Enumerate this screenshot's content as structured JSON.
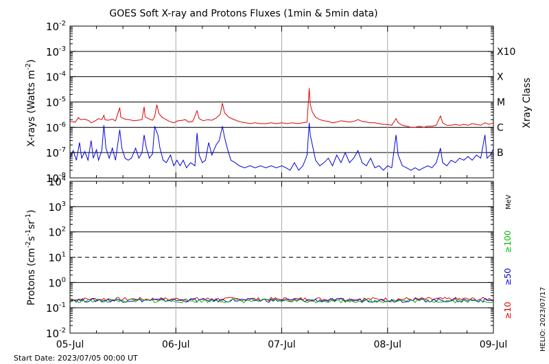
{
  "title": "GOES Soft X-ray and Protons Fluxes   (1min & 5min data)",
  "footer": {
    "start_date": "Start Date: 2023/07/05 00:00 UT",
    "side_stamp": "HELIO: 2023/07/17"
  },
  "chart_data": [
    {
      "type": "line",
      "panel": "xray",
      "ylabel_main": "X-rays (Watts m",
      "ylabel_sup": "-2",
      "ylabel_close": ")",
      "y_scale": "log",
      "ylim_exp": [
        -8,
        -2
      ],
      "ytick_exponents": [
        -8,
        -7,
        -6,
        -5,
        -4,
        -3,
        -2
      ],
      "ytick_base": "10",
      "right_axis_label": "Xray Class",
      "class_labels": [
        {
          "label": "X10",
          "exp": -3
        },
        {
          "label": "X",
          "exp": -4
        },
        {
          "label": "M",
          "exp": -5
        },
        {
          "label": "C",
          "exp": -6
        },
        {
          "label": "B",
          "exp": -7
        }
      ],
      "grid_lines_exp": [
        -7,
        -6,
        -5,
        -4,
        -3
      ],
      "series": [
        {
          "name": "long",
          "color": "#dd0000",
          "points": [
            [
              0,
              1.7e-06
            ],
            [
              0.05,
              1.6e-06
            ],
            [
              0.08,
              2.4e-06
            ],
            [
              0.1,
              2e-06
            ],
            [
              0.14,
              2.1e-06
            ],
            [
              0.18,
              1.8e-06
            ],
            [
              0.2,
              1.5e-06
            ],
            [
              0.23,
              1.7e-06
            ],
            [
              0.27,
              2.2e-06
            ],
            [
              0.3,
              2e-06
            ],
            [
              0.32,
              3e-06
            ],
            [
              0.33,
              2e-06
            ],
            [
              0.36,
              1.9e-06
            ],
            [
              0.4,
              2.1e-06
            ],
            [
              0.43,
              1.8e-06
            ],
            [
              0.47,
              6e-06
            ],
            [
              0.48,
              2.5e-06
            ],
            [
              0.52,
              2.1e-06
            ],
            [
              0.56,
              2e-06
            ],
            [
              0.6,
              1.8e-06
            ],
            [
              0.64,
              1.9e-06
            ],
            [
              0.68,
              2e-06
            ],
            [
              0.7,
              6.5e-06
            ],
            [
              0.71,
              2.6e-06
            ],
            [
              0.74,
              2.2e-06
            ],
            [
              0.78,
              1.9e-06
            ],
            [
              0.8,
              2.6e-06
            ],
            [
              0.82,
              7.8e-06
            ],
            [
              0.84,
              3.5e-06
            ],
            [
              0.87,
              2.5e-06
            ],
            [
              0.9,
              2.1e-06
            ],
            [
              0.94,
              1.7e-06
            ],
            [
              0.98,
              1.5e-06
            ],
            [
              1.02,
              1.8e-06
            ],
            [
              1.06,
              1.9e-06
            ],
            [
              1.09,
              2e-06
            ],
            [
              1.12,
              1.6e-06
            ],
            [
              1.16,
              1.7e-06
            ],
            [
              1.2,
              4.5e-06
            ],
            [
              1.22,
              2.2e-06
            ],
            [
              1.26,
              1.8e-06
            ],
            [
              1.3,
              2e-06
            ],
            [
              1.34,
              1.9e-06
            ],
            [
              1.38,
              2.3e-06
            ],
            [
              1.42,
              3.3e-06
            ],
            [
              1.44,
              9e-06
            ],
            [
              1.46,
              3.8e-06
            ],
            [
              1.5,
              2.5e-06
            ],
            [
              1.54,
              2.1e-06
            ],
            [
              1.58,
              1.8e-06
            ],
            [
              1.62,
              1.6e-06
            ],
            [
              1.66,
              1.5e-06
            ],
            [
              1.7,
              1.4e-06
            ],
            [
              1.75,
              1.5e-06
            ],
            [
              1.8,
              1.4e-06
            ],
            [
              1.85,
              1.4e-06
            ],
            [
              1.9,
              1.5e-06
            ],
            [
              1.95,
              1.4e-06
            ],
            [
              2.0,
              1.5e-06
            ],
            [
              2.05,
              1.4e-06
            ],
            [
              2.1,
              1.5e-06
            ],
            [
              2.15,
              1.4e-06
            ],
            [
              2.2,
              1.5e-06
            ],
            [
              2.24,
              1.6e-06
            ],
            [
              2.26,
              3.5e-05
            ],
            [
              2.27,
              8e-06
            ],
            [
              2.29,
              4e-06
            ],
            [
              2.32,
              2.5e-06
            ],
            [
              2.36,
              2e-06
            ],
            [
              2.4,
              1.8e-06
            ],
            [
              2.44,
              1.7e-06
            ],
            [
              2.48,
              1.5e-06
            ],
            [
              2.52,
              1.6e-06
            ],
            [
              2.56,
              1.8e-06
            ],
            [
              2.6,
              1.7e-06
            ],
            [
              2.64,
              1.6e-06
            ],
            [
              2.68,
              1.7e-06
            ],
            [
              2.72,
              2e-06
            ],
            [
              2.76,
              1.7e-06
            ],
            [
              2.8,
              1.6e-06
            ],
            [
              2.84,
              1.5e-06
            ],
            [
              2.88,
              1.5e-06
            ],
            [
              2.92,
              1.4e-06
            ],
            [
              2.96,
              1.3e-06
            ],
            [
              3.0,
              1.3e-06
            ],
            [
              3.04,
              1.2e-06
            ],
            [
              3.08,
              2.2e-06
            ],
            [
              3.1,
              1.5e-06
            ],
            [
              3.14,
              1.2e-06
            ],
            [
              3.18,
              1.1e-06
            ],
            [
              3.22,
              1e-06
            ],
            [
              3.26,
              1e-06
            ],
            [
              3.3,
              1.1e-06
            ],
            [
              3.34,
              1e-06
            ],
            [
              3.38,
              1.1e-06
            ],
            [
              3.42,
              1.1e-06
            ],
            [
              3.46,
              1.2e-06
            ],
            [
              3.5,
              2.8e-06
            ],
            [
              3.52,
              1.5e-06
            ],
            [
              3.56,
              1.2e-06
            ],
            [
              3.6,
              1.2e-06
            ],
            [
              3.64,
              1.3e-06
            ],
            [
              3.68,
              1.2e-06
            ],
            [
              3.72,
              1.3e-06
            ],
            [
              3.76,
              1.2e-06
            ],
            [
              3.8,
              1.4e-06
            ],
            [
              3.84,
              1.3e-06
            ],
            [
              3.88,
              1.2e-06
            ],
            [
              3.92,
              1.5e-06
            ],
            [
              3.96,
              1.3e-06
            ],
            [
              4.0,
              1.5e-06
            ]
          ]
        },
        {
          "name": "short",
          "color": "#0000dd",
          "points": [
            [
              0,
              6e-08
            ],
            [
              0.03,
              1.2e-07
            ],
            [
              0.06,
              5e-08
            ],
            [
              0.09,
              2.5e-07
            ],
            [
              0.11,
              6e-08
            ],
            [
              0.14,
              1.1e-07
            ],
            [
              0.17,
              5e-08
            ],
            [
              0.2,
              3e-07
            ],
            [
              0.22,
              6e-08
            ],
            [
              0.25,
              1.3e-07
            ],
            [
              0.27,
              5e-08
            ],
            [
              0.3,
              1.2e-07
            ],
            [
              0.32,
              1.2e-06
            ],
            [
              0.34,
              1.5e-07
            ],
            [
              0.37,
              6e-08
            ],
            [
              0.4,
              1.5e-07
            ],
            [
              0.43,
              5e-08
            ],
            [
              0.47,
              8e-07
            ],
            [
              0.49,
              1.5e-07
            ],
            [
              0.52,
              6e-08
            ],
            [
              0.55,
              5e-08
            ],
            [
              0.58,
              6e-08
            ],
            [
              0.62,
              1.5e-07
            ],
            [
              0.65,
              6e-08
            ],
            [
              0.68,
              1e-07
            ],
            [
              0.7,
              5e-07
            ],
            [
              0.72,
              1.6e-07
            ],
            [
              0.75,
              6e-08
            ],
            [
              0.78,
              9e-08
            ],
            [
              0.8,
              1.1e-06
            ],
            [
              0.83,
              5e-07
            ],
            [
              0.85,
              1.5e-07
            ],
            [
              0.88,
              5e-08
            ],
            [
              0.91,
              4e-08
            ],
            [
              0.95,
              8e-08
            ],
            [
              0.98,
              3e-08
            ],
            [
              1.01,
              5e-08
            ],
            [
              1.04,
              3e-08
            ],
            [
              1.07,
              5e-08
            ],
            [
              1.1,
              2.5e-08
            ],
            [
              1.14,
              4e-08
            ],
            [
              1.18,
              3e-08
            ],
            [
              1.2,
              6e-07
            ],
            [
              1.22,
              8e-08
            ],
            [
              1.25,
              4e-08
            ],
            [
              1.28,
              5e-08
            ],
            [
              1.31,
              2.5e-07
            ],
            [
              1.34,
              8e-08
            ],
            [
              1.38,
              2e-07
            ],
            [
              1.41,
              3e-07
            ],
            [
              1.44,
              1.1e-06
            ],
            [
              1.46,
              4e-07
            ],
            [
              1.49,
              1.3e-07
            ],
            [
              1.52,
              5e-08
            ],
            [
              1.56,
              4e-08
            ],
            [
              1.6,
              3e-08
            ],
            [
              1.65,
              2.5e-08
            ],
            [
              1.7,
              3e-08
            ],
            [
              1.75,
              2.5e-08
            ],
            [
              1.8,
              3e-08
            ],
            [
              1.85,
              2.5e-08
            ],
            [
              1.9,
              3e-08
            ],
            [
              1.95,
              2.5e-08
            ],
            [
              2.0,
              3e-08
            ],
            [
              2.04,
              2.5e-08
            ],
            [
              2.08,
              2e-08
            ],
            [
              2.12,
              4e-08
            ],
            [
              2.16,
              2e-08
            ],
            [
              2.2,
              3e-08
            ],
            [
              2.24,
              8e-08
            ],
            [
              2.26,
              1.5e-06
            ],
            [
              2.27,
              5e-07
            ],
            [
              2.29,
              2e-07
            ],
            [
              2.32,
              5e-08
            ],
            [
              2.36,
              3e-08
            ],
            [
              2.4,
              4e-08
            ],
            [
              2.44,
              6e-08
            ],
            [
              2.48,
              3e-08
            ],
            [
              2.52,
              8e-08
            ],
            [
              2.56,
              4e-08
            ],
            [
              2.6,
              1e-07
            ],
            [
              2.64,
              4e-08
            ],
            [
              2.68,
              6e-08
            ],
            [
              2.72,
              1.2e-07
            ],
            [
              2.76,
              4e-08
            ],
            [
              2.8,
              3e-08
            ],
            [
              2.84,
              6e-08
            ],
            [
              2.88,
              2.5e-08
            ],
            [
              2.92,
              3e-08
            ],
            [
              2.96,
              2e-08
            ],
            [
              3.0,
              3e-08
            ],
            [
              3.04,
              2.5e-08
            ],
            [
              3.08,
              5e-07
            ],
            [
              3.1,
              8e-08
            ],
            [
              3.14,
              3e-08
            ],
            [
              3.18,
              2.5e-08
            ],
            [
              3.22,
              2e-08
            ],
            [
              3.26,
              2.5e-08
            ],
            [
              3.3,
              2e-08
            ],
            [
              3.34,
              2.5e-08
            ],
            [
              3.38,
              3e-08
            ],
            [
              3.42,
              2.5e-08
            ],
            [
              3.46,
              4e-08
            ],
            [
              3.5,
              1.5e-07
            ],
            [
              3.52,
              4e-08
            ],
            [
              3.56,
              3e-08
            ],
            [
              3.6,
              5e-08
            ],
            [
              3.64,
              4e-08
            ],
            [
              3.68,
              6e-08
            ],
            [
              3.72,
              5e-08
            ],
            [
              3.76,
              7e-08
            ],
            [
              3.8,
              5e-08
            ],
            [
              3.84,
              8e-08
            ],
            [
              3.88,
              6e-08
            ],
            [
              3.92,
              5e-07
            ],
            [
              3.94,
              6e-08
            ],
            [
              3.97,
              8e-08
            ],
            [
              4.0,
              1.4e-07
            ]
          ]
        }
      ]
    },
    {
      "type": "line",
      "panel": "protons",
      "ylabel_main": "Protons (cm",
      "ylabel_parts": [
        "-2",
        "s",
        "-1",
        "sr",
        "-1",
        ")"
      ],
      "y_scale": "log",
      "ylim_exp": [
        -2,
        4
      ],
      "ytick_exponents": [
        -2,
        -1,
        0,
        1,
        2,
        3,
        4
      ],
      "ytick_base": "10",
      "grid_lines_exp": [
        -1,
        0,
        2,
        3
      ],
      "dashed_line_exp": 1,
      "energy_unit": "MeV",
      "energy_labels": [
        {
          "label": "≥100",
          "color": "#00bb00"
        },
        {
          "label": "≥50",
          "color": "#0000dd"
        },
        {
          "label": "≥10",
          "color": "#dd0000"
        }
      ],
      "series": [
        {
          "name": "≥10",
          "color": "#dd0000",
          "level": 0.22
        },
        {
          "name": "≥50",
          "color": "#0000dd",
          "level": 0.2
        },
        {
          "name": "≥100",
          "color": "#00bb00",
          "level": 0.19
        }
      ]
    }
  ],
  "x_axis": {
    "ticks": [
      "05-Jul",
      "06-Jul",
      "07-Jul",
      "08-Jul",
      "09-Jul"
    ],
    "days": 4
  }
}
